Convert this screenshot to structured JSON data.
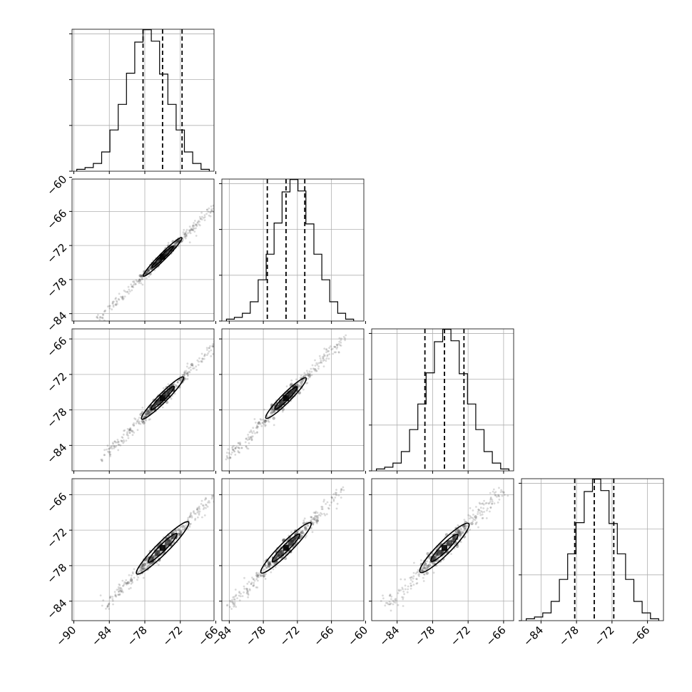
{
  "chart_data": {
    "type": "corner",
    "n_params": 4,
    "grid": true,
    "x_tick_values": [
      [
        -90,
        -84,
        -78,
        -72,
        -66
      ],
      [
        -84,
        -78,
        -72,
        -66,
        -60
      ],
      [
        -84,
        -78,
        -72,
        -66
      ],
      [
        -84,
        -78,
        -72,
        -66
      ]
    ],
    "x_tick_labels": [
      [
        "−90",
        "−84",
        "−78",
        "−72",
        "−66"
      ],
      [
        "−84",
        "−78",
        "−72",
        "−66",
        "−60"
      ],
      [
        "−84",
        "−78",
        "−72",
        "−66"
      ],
      [
        "−84",
        "−78",
        "−72",
        "−66"
      ]
    ],
    "y_tick_values": [
      null,
      [
        -84,
        -78,
        -72,
        -66,
        -60
      ],
      [
        -84,
        -78,
        -72,
        -66
      ],
      [
        -84,
        -78,
        -72,
        -66
      ]
    ],
    "y_tick_labels": [
      null,
      [
        "−84",
        "−78",
        "−72",
        "−66",
        "−60"
      ],
      [
        "−84",
        "−78",
        "−72",
        "−66"
      ],
      [
        "−84",
        "−78",
        "−72",
        "−66"
      ]
    ],
    "ranges": [
      [
        -90.3,
        -66.3
      ],
      [
        -85.3,
        -60.3
      ],
      [
        -88.3,
        -64.3
      ],
      [
        -87.3,
        -63.3
      ]
    ],
    "hist_density_max": 0.31,
    "hist_density_ticks": [
      0.1,
      0.2,
      0.3
    ],
    "quantiles": [
      [
        -78.3,
        -75.0,
        -71.7
      ],
      [
        -77.3,
        -74.0,
        -70.7
      ],
      [
        -79.3,
        -76.0,
        -72.7
      ],
      [
        -78.3,
        -75.0,
        -71.7
      ]
    ],
    "histograms": [
      {
        "bin_edges": [
          -89.5,
          -88.1,
          -86.7,
          -85.3,
          -83.9,
          -82.5,
          -81.1,
          -79.7,
          -78.3,
          -76.9,
          -75.5,
          -74.1,
          -72.7,
          -71.3,
          -69.9,
          -68.5,
          -67.1
        ],
        "density": [
          0.004,
          0.008,
          0.017,
          0.042,
          0.09,
          0.146,
          0.214,
          0.282,
          0.309,
          0.284,
          0.212,
          0.146,
          0.09,
          0.042,
          0.017,
          0.004
        ]
      },
      {
        "bin_edges": [
          -84.5,
          -83.1,
          -81.7,
          -80.3,
          -78.9,
          -77.5,
          -76.1,
          -74.7,
          -73.3,
          -71.9,
          -70.5,
          -69.1,
          -67.7,
          -66.3,
          -64.9,
          -63.5,
          -62.1
        ],
        "density": [
          0.004,
          0.008,
          0.017,
          0.042,
          0.09,
          0.146,
          0.214,
          0.282,
          0.309,
          0.284,
          0.212,
          0.146,
          0.09,
          0.042,
          0.017,
          0.004
        ]
      },
      {
        "bin_edges": [
          -87.5,
          -86.1,
          -84.7,
          -83.3,
          -81.9,
          -80.5,
          -79.1,
          -77.7,
          -76.3,
          -74.9,
          -73.5,
          -72.1,
          -70.7,
          -69.3,
          -67.9,
          -66.5,
          -65.1
        ],
        "density": [
          0.004,
          0.008,
          0.017,
          0.042,
          0.09,
          0.146,
          0.214,
          0.282,
          0.309,
          0.284,
          0.212,
          0.146,
          0.09,
          0.042,
          0.017,
          0.004
        ]
      },
      {
        "bin_edges": [
          -86.5,
          -85.1,
          -83.7,
          -82.3,
          -80.9,
          -79.5,
          -78.1,
          -76.7,
          -75.3,
          -73.9,
          -72.5,
          -71.1,
          -69.7,
          -68.3,
          -66.9,
          -65.5,
          -64.1
        ],
        "density": [
          0.004,
          0.008,
          0.017,
          0.042,
          0.09,
          0.146,
          0.214,
          0.282,
          0.309,
          0.284,
          0.212,
          0.146,
          0.09,
          0.042,
          0.017,
          0.004
        ]
      }
    ],
    "pairs": [
      {
        "x_param": 0,
        "y_param": 1,
        "center": [
          -75.0,
          -74.0
        ],
        "spread_along": 15.5,
        "spread_across": 0.35,
        "contour_along": 4.6,
        "contour_across": 0.55
      },
      {
        "x_param": 0,
        "y_param": 2,
        "center": [
          -75.0,
          -76.0
        ],
        "spread_along": 15.0,
        "spread_across": 0.45,
        "contour_along": 5.0,
        "contour_across": 0.75
      },
      {
        "x_param": 1,
        "y_param": 2,
        "center": [
          -74.0,
          -76.0
        ],
        "spread_along": 15.0,
        "spread_across": 0.45,
        "contour_along": 5.0,
        "contour_across": 0.8
      },
      {
        "x_param": 0,
        "y_param": 3,
        "center": [
          -75.0,
          -75.0
        ],
        "spread_along": 14.5,
        "spread_across": 0.5,
        "contour_along": 6.2,
        "contour_across": 1.0
      },
      {
        "x_param": 1,
        "y_param": 3,
        "center": [
          -74.0,
          -75.0
        ],
        "spread_along": 14.5,
        "spread_across": 0.5,
        "contour_along": 6.2,
        "contour_across": 1.0
      },
      {
        "x_param": 2,
        "y_param": 3,
        "center": [
          -76.0,
          -75.0
        ],
        "spread_along": 14.0,
        "spread_across": 0.7,
        "contour_along": 5.8,
        "contour_across": 1.1
      }
    ],
    "colors": {
      "line": "#000000",
      "grid": "#b0b0b0",
      "points": "#555555",
      "background": "#ffffff"
    }
  }
}
